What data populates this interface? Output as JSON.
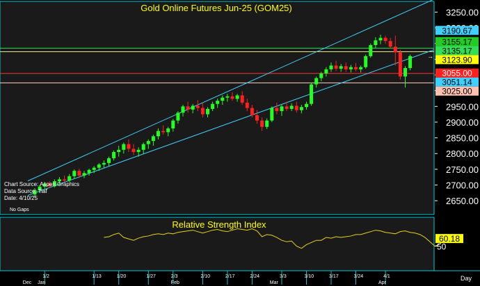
{
  "chart_data": {
    "type": "candlestick",
    "title": "Gold Online Futures Jun-25 (GOM25)",
    "colors": {
      "background": "#1a1a1a",
      "frame": "#00c8d2",
      "up": "#22ff22",
      "down": "#ff2020",
      "title": "#ffff00",
      "rsi_line": "#e6d21e",
      "channel": "#40d0ff"
    },
    "info_lines": [
      "Chart Source: Aspen Graphics",
      "Data Source: Tiaf",
      "Date:  4/10/25"
    ],
    "footnote": "No Gaps",
    "price_axis": {
      "ylim": [
        2615,
        3262
      ],
      "ticks": [
        2650,
        2700,
        2750,
        2800,
        2850,
        2900,
        2950,
        3000,
        3050,
        3100,
        3150,
        3200,
        3250
      ],
      "tick_labels": [
        "2650.00",
        "2700.00",
        "2750.00",
        "2800.00",
        "2850.00",
        "2900.00",
        "2950.00",
        "3000.00",
        "3050.00",
        "3100.00",
        "3150.00",
        "3200.00",
        "3250.00"
      ]
    },
    "price_labels": [
      {
        "text": "3190.67",
        "value": 3190.67,
        "bg": "#40d0ff",
        "fg": "#000000"
      },
      {
        "text": "3155.17",
        "value": 3155.17,
        "bg": "#22cc22",
        "fg": "#000000"
      },
      {
        "text": "3135.17",
        "value": 3135.17,
        "bg": "#33dd55",
        "fg": "#000000"
      },
      {
        "text": "3123.90",
        "value": 3123.9,
        "bg": "#ffff00",
        "fg": "#000000"
      },
      {
        "text": "3055.00",
        "value": 3055.0,
        "bg": "#ff2020",
        "fg": "#ffffff"
      },
      {
        "text": "3051.14",
        "value": 3051.14,
        "bg": "#40d0ff",
        "fg": "#000000"
      },
      {
        "text": "3025.00",
        "value": 3025.0,
        "bg": "#ffc0b0",
        "fg": "#000000"
      }
    ],
    "horizontal_lines": [
      {
        "value": 3135.17,
        "color": "#33dd55"
      },
      {
        "value": 3123.9,
        "color": "#e6e68c"
      },
      {
        "value": 3055.0,
        "color": "#ff3030"
      },
      {
        "value": 3025.0,
        "color": "#ffd0c0"
      }
    ],
    "channel_lines": [
      {
        "from": {
          "bar": 0,
          "value": 2713
        },
        "to": {
          "bar": 71,
          "value": 3212
        }
      },
      {
        "from": {
          "bar": 0,
          "value": 2667
        },
        "to": {
          "bar": 71,
          "value": 3067
        }
      }
    ],
    "x_axis": {
      "dates": [
        "1/2",
        "1/13",
        "1/20",
        "1/27",
        "2/3",
        "2/10",
        "2/17",
        "2/24",
        "3/3",
        "3/10",
        "3/17",
        "3/24",
        "4/1"
      ],
      "date_bars": [
        2,
        12,
        17,
        23,
        28,
        34,
        39,
        44,
        50,
        55,
        60,
        65,
        71
      ],
      "months": [
        {
          "label": "Dec",
          "bar": -2
        },
        {
          "label": "Jan",
          "bar": 1
        },
        {
          "label": "Feb",
          "bar": 28
        },
        {
          "label": "Mar",
          "bar": 48
        },
        {
          "label": "Apr",
          "bar": 70
        }
      ],
      "period_label": "Day"
    },
    "candles": [
      [
        2670,
        2690,
        2662,
        2683
      ],
      [
        2683,
        2700,
        2675,
        2695
      ],
      [
        2695,
        2710,
        2688,
        2704
      ],
      [
        2704,
        2712,
        2690,
        2696
      ],
      [
        2696,
        2718,
        2692,
        2712
      ],
      [
        2712,
        2725,
        2700,
        2718
      ],
      [
        2718,
        2730,
        2708,
        2714
      ],
      [
        2714,
        2735,
        2710,
        2728
      ],
      [
        2728,
        2750,
        2720,
        2745
      ],
      [
        2745,
        2752,
        2722,
        2730
      ],
      [
        2730,
        2745,
        2722,
        2738
      ],
      [
        2738,
        2752,
        2730,
        2748
      ],
      [
        2748,
        2760,
        2738,
        2755
      ],
      [
        2755,
        2770,
        2745,
        2765
      ],
      [
        2765,
        2778,
        2755,
        2770
      ],
      [
        2770,
        2790,
        2760,
        2785
      ],
      [
        2785,
        2810,
        2778,
        2805
      ],
      [
        2805,
        2825,
        2790,
        2812
      ],
      [
        2812,
        2835,
        2800,
        2830
      ],
      [
        2830,
        2845,
        2805,
        2815
      ],
      [
        2815,
        2830,
        2795,
        2805
      ],
      [
        2805,
        2820,
        2790,
        2812
      ],
      [
        2812,
        2835,
        2800,
        2830
      ],
      [
        2830,
        2845,
        2815,
        2840
      ],
      [
        2840,
        2860,
        2825,
        2855
      ],
      [
        2855,
        2880,
        2845,
        2872
      ],
      [
        2872,
        2890,
        2860,
        2868
      ],
      [
        2868,
        2885,
        2855,
        2880
      ],
      [
        2880,
        2910,
        2870,
        2905
      ],
      [
        2905,
        2935,
        2895,
        2930
      ],
      [
        2930,
        2955,
        2918,
        2950
      ],
      [
        2950,
        2965,
        2930,
        2940
      ],
      [
        2940,
        2958,
        2928,
        2952
      ],
      [
        2952,
        2970,
        2935,
        2945
      ],
      [
        2945,
        2962,
        2915,
        2925
      ],
      [
        2925,
        2948,
        2915,
        2942
      ],
      [
        2942,
        2965,
        2935,
        2958
      ],
      [
        2958,
        2975,
        2945,
        2968
      ],
      [
        2968,
        2985,
        2955,
        2978
      ],
      [
        2978,
        2990,
        2965,
        2982
      ],
      [
        2982,
        2995,
        2968,
        2974
      ],
      [
        2974,
        2990,
        2965,
        2985
      ],
      [
        2985,
        2998,
        2955,
        2962
      ],
      [
        2962,
        2975,
        2935,
        2945
      ],
      [
        2945,
        2955,
        2915,
        2922
      ],
      [
        2922,
        2938,
        2895,
        2905
      ],
      [
        2905,
        2915,
        2872,
        2885
      ],
      [
        2885,
        2912,
        2878,
        2905
      ],
      [
        2905,
        2950,
        2900,
        2945
      ],
      [
        2945,
        2962,
        2925,
        2935
      ],
      [
        2935,
        2955,
        2920,
        2950
      ],
      [
        2950,
        2965,
        2935,
        2942
      ],
      [
        2942,
        2960,
        2935,
        2952
      ],
      [
        2952,
        2965,
        2930,
        2938
      ],
      [
        2938,
        2955,
        2928,
        2948
      ],
      [
        2948,
        2965,
        2940,
        2958
      ],
      [
        2958,
        3025,
        2952,
        3020
      ],
      [
        3020,
        3045,
        3010,
        3040
      ],
      [
        3040,
        3060,
        3030,
        3055
      ],
      [
        3055,
        3075,
        3045,
        3068
      ],
      [
        3068,
        3090,
        3060,
        3080
      ],
      [
        3080,
        3095,
        3062,
        3070
      ],
      [
        3070,
        3085,
        3060,
        3078
      ],
      [
        3078,
        3090,
        3060,
        3068
      ],
      [
        3068,
        3082,
        3058,
        3075
      ],
      [
        3075,
        3088,
        3062,
        3068
      ],
      [
        3068,
        3080,
        3058,
        3075
      ],
      [
        3075,
        3115,
        3070,
        3110
      ],
      [
        3110,
        3150,
        3105,
        3145
      ],
      [
        3145,
        3170,
        3135,
        3160
      ],
      [
        3160,
        3178,
        3148,
        3168
      ],
      [
        3168,
        3175,
        3150,
        3158
      ],
      [
        3158,
        3168,
        3135,
        3140
      ],
      [
        3140,
        3175,
        3080,
        3122
      ],
      [
        3122,
        3130,
        3035,
        3045
      ],
      [
        3045,
        3078,
        3010,
        3072
      ],
      [
        3072,
        3115,
        3065,
        3110
      ]
    ],
    "rsi": {
      "title": "Relative Strength Index",
      "ylim": [
        18,
        85
      ],
      "ticks": [
        50
      ],
      "tick_labels": [
        "50"
      ],
      "last_label": "60.18",
      "start_bar": 14,
      "values": [
        62,
        63,
        66,
        68,
        62,
        60,
        58,
        61,
        63,
        64,
        66,
        67,
        66,
        68,
        67,
        69,
        70,
        71,
        72,
        70,
        68,
        70,
        72,
        73,
        71,
        70,
        72,
        74,
        73,
        72,
        74,
        71,
        63,
        66,
        65,
        62,
        58,
        56,
        57,
        50,
        47,
        52,
        55,
        58,
        58,
        62,
        61,
        63,
        62,
        63,
        64,
        66,
        66,
        68,
        70,
        72,
        71,
        69,
        68,
        67,
        70,
        71,
        69,
        68,
        66,
        62,
        56,
        50,
        53,
        60,
        58,
        61,
        60
      ]
    }
  }
}
